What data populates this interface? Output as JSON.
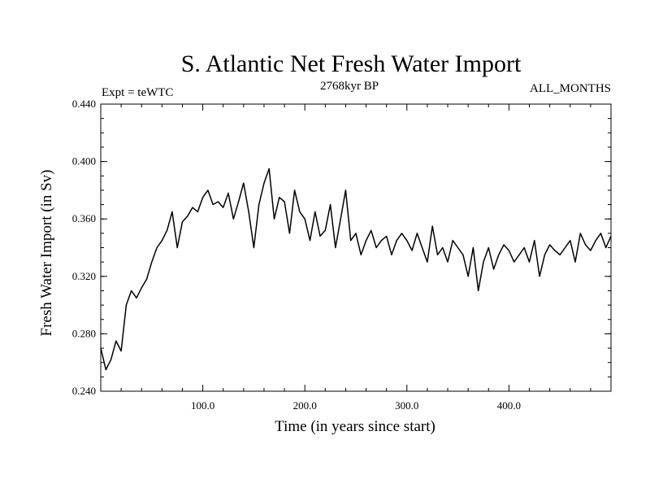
{
  "chart_data": {
    "type": "line",
    "title": "S. Atlantic Net Fresh Water Import",
    "subtitle_left": "Expt = teWTC",
    "subtitle_center": "2768kyr BP",
    "subtitle_right": "ALL_MONTHS",
    "xlabel": "Time (in years since start)",
    "ylabel": "Fresh Water Import (in Sv)",
    "xlim": [
      0,
      500
    ],
    "ylim": [
      0.24,
      0.44
    ],
    "x_ticks": [
      100,
      200,
      300,
      400
    ],
    "x_tick_labels": [
      "100.0",
      "200.0",
      "300.0",
      "400.0"
    ],
    "y_ticks": [
      0.24,
      0.28,
      0.32,
      0.36,
      0.4,
      0.44
    ],
    "y_tick_labels": [
      "0.240",
      "0.280",
      "0.320",
      "0.360",
      "0.400",
      "0.440"
    ],
    "grid": false,
    "line_color": "#000000",
    "series": [
      {
        "name": "Fresh Water Import",
        "x": [
          0,
          5,
          10,
          15,
          20,
          25,
          30,
          35,
          40,
          45,
          50,
          55,
          60,
          65,
          70,
          75,
          80,
          85,
          90,
          95,
          100,
          105,
          110,
          115,
          120,
          125,
          130,
          135,
          140,
          145,
          150,
          155,
          160,
          165,
          170,
          175,
          180,
          185,
          190,
          195,
          200,
          205,
          210,
          215,
          220,
          225,
          230,
          235,
          240,
          245,
          250,
          255,
          260,
          265,
          270,
          275,
          280,
          285,
          290,
          295,
          300,
          305,
          310,
          315,
          320,
          325,
          330,
          335,
          340,
          345,
          350,
          355,
          360,
          365,
          370,
          375,
          380,
          385,
          390,
          395,
          400,
          405,
          410,
          415,
          420,
          425,
          430,
          435,
          440,
          445,
          450,
          455,
          460,
          465,
          470,
          475,
          480,
          485,
          490,
          495,
          500
        ],
        "values": [
          0.27,
          0.255,
          0.262,
          0.275,
          0.268,
          0.3,
          0.31,
          0.305,
          0.312,
          0.318,
          0.33,
          0.34,
          0.345,
          0.352,
          0.365,
          0.34,
          0.358,
          0.362,
          0.368,
          0.365,
          0.375,
          0.38,
          0.37,
          0.372,
          0.368,
          0.378,
          0.36,
          0.372,
          0.385,
          0.365,
          0.34,
          0.37,
          0.385,
          0.395,
          0.36,
          0.375,
          0.372,
          0.35,
          0.38,
          0.365,
          0.36,
          0.345,
          0.365,
          0.348,
          0.352,
          0.37,
          0.34,
          0.36,
          0.38,
          0.345,
          0.35,
          0.335,
          0.345,
          0.352,
          0.34,
          0.345,
          0.348,
          0.335,
          0.345,
          0.35,
          0.345,
          0.338,
          0.35,
          0.34,
          0.33,
          0.355,
          0.335,
          0.34,
          0.33,
          0.345,
          0.34,
          0.335,
          0.32,
          0.34,
          0.31,
          0.33,
          0.34,
          0.325,
          0.335,
          0.342,
          0.338,
          0.33,
          0.335,
          0.34,
          0.33,
          0.345,
          0.32,
          0.335,
          0.342,
          0.338,
          0.335,
          0.34,
          0.345,
          0.33,
          0.35,
          0.342,
          0.338,
          0.345,
          0.35,
          0.34,
          0.348
        ]
      }
    ]
  }
}
